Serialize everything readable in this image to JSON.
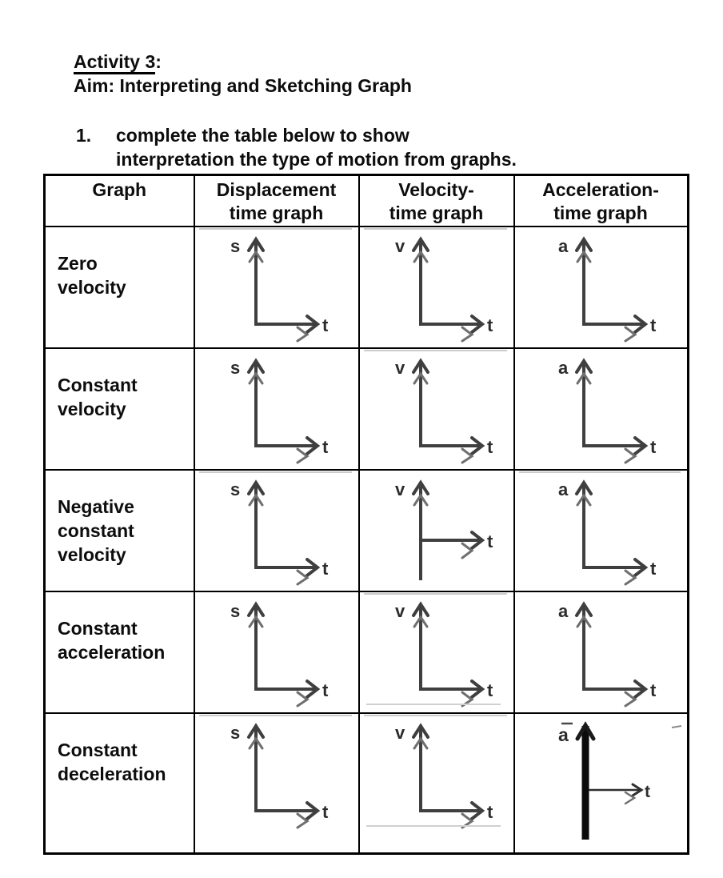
{
  "heading": {
    "activity": "Activity 3",
    "colon": ":",
    "aim": "Aim: Interpreting and Sketching Graph"
  },
  "instruction": {
    "number": "1.",
    "text_line1": "complete the table below to show",
    "text_line2": "interpretation the type of motion from graphs."
  },
  "table": {
    "headers": [
      {
        "line1": "Graph",
        "line2": ""
      },
      {
        "line1": "Displacement",
        "line2": "time graph"
      },
      {
        "line1": "Velocity-",
        "line2": "time graph"
      },
      {
        "line1": "Acceleration-",
        "line2": "time graph"
      }
    ],
    "rows": [
      {
        "label": "Zero\nvelocity",
        "graphs": [
          {
            "axis": "s",
            "time": "t",
            "variant": "standard",
            "topline": true
          },
          {
            "axis": "v",
            "time": "t",
            "variant": "standard",
            "topline": true
          },
          {
            "axis": "a",
            "time": "t",
            "variant": "standard"
          }
        ]
      },
      {
        "label": "Constant\nvelocity",
        "graphs": [
          {
            "axis": "s",
            "time": "t",
            "variant": "standard"
          },
          {
            "axis": "v",
            "time": "t",
            "variant": "standard",
            "topline": true
          },
          {
            "axis": "a",
            "time": "t",
            "variant": "standard"
          }
        ]
      },
      {
        "label": "Negative\nconstant\nvelocity",
        "graphs": [
          {
            "axis": "s",
            "time": "t",
            "variant": "standard",
            "topline": true
          },
          {
            "axis": "v",
            "time": "t",
            "variant": "mid-axis"
          },
          {
            "axis": "a",
            "time": "t",
            "variant": "standard",
            "topline": true
          }
        ]
      },
      {
        "label": "Constant\nacceleration",
        "graphs": [
          {
            "axis": "s",
            "time": "t",
            "variant": "standard"
          },
          {
            "axis": "v",
            "time": "t",
            "variant": "standard",
            "topline": true,
            "bottomline": true
          },
          {
            "axis": "a",
            "time": "t",
            "variant": "standard"
          }
        ]
      },
      {
        "label": "Constant\ndeceleration",
        "graphs": [
          {
            "axis": "s",
            "time": "t",
            "variant": "standard",
            "topline": true
          },
          {
            "axis": "v",
            "time": "t",
            "variant": "standard",
            "topline": true,
            "bottomline": true
          },
          {
            "axis": "a",
            "time": "t",
            "variant": "thick-negative"
          }
        ]
      }
    ]
  },
  "colors": {
    "axis_stroke": "#3f3f3f",
    "ghost_stroke": "#6f6f6f",
    "label_color": "#2c2c2c",
    "thick_stroke": "#0b0b0b",
    "border_color": "#000000",
    "artifact_line": "#cccccc"
  }
}
